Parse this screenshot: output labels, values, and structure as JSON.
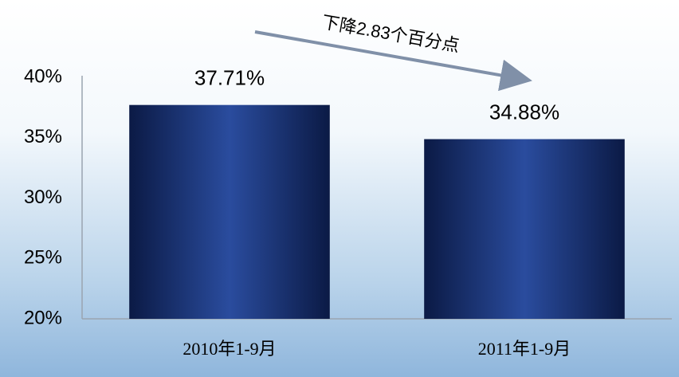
{
  "chart_data": {
    "type": "bar",
    "annotation": "下降2.83个百分点",
    "categories": [
      "2010年1-9月",
      "2011年1-9月"
    ],
    "values": [
      37.71,
      34.88
    ],
    "value_labels": [
      "37.71%",
      "34.88%"
    ],
    "color": "#1d3a80",
    "ylim": [
      20,
      40
    ],
    "yticks": [
      {
        "value": 20,
        "label": "20%"
      },
      {
        "value": 25,
        "label": "25%"
      },
      {
        "value": 30,
        "label": "30%"
      },
      {
        "value": 35,
        "label": "35%"
      },
      {
        "value": 40,
        "label": "40%"
      }
    ],
    "grid": false
  }
}
